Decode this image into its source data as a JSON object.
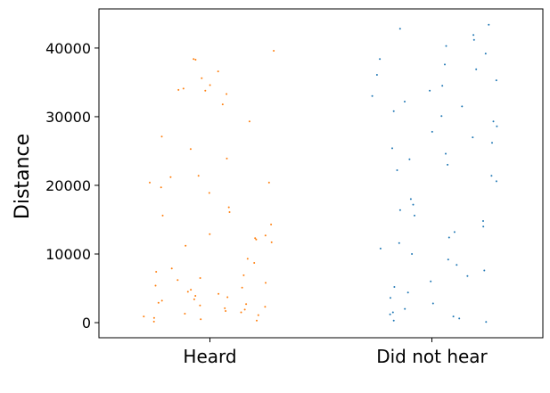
{
  "chart_data": {
    "type": "scatter",
    "subtype": "strip",
    "title": "",
    "xlabel": "",
    "ylabel": "Distance",
    "ylim": [
      -2200,
      45700
    ],
    "yticks": [
      0,
      10000,
      20000,
      30000,
      40000
    ],
    "grid": false,
    "legend": "none",
    "categories": [
      "Heard",
      "Did not hear"
    ],
    "series": [
      {
        "category": "Heard",
        "color": "#ff7f0e",
        "summary": "dense cluster from 0 to about 2500, sparser points up to about 7000, scattered outliers up to about 39600",
        "values": [
          20400,
          34600,
          36600,
          38400,
          31800,
          33300,
          33900,
          39600,
          38300,
          35600,
          34100,
          33800,
          29300,
          27100,
          25300,
          23900,
          21400,
          21200,
          20400,
          19700,
          18900,
          16800,
          16100,
          15600,
          14300,
          12900,
          12700,
          12300,
          12100,
          11700,
          11200,
          9300,
          8700,
          7900,
          7400,
          6900,
          6500,
          6200,
          5800,
          5400,
          5100,
          4800,
          4500,
          4200,
          3900,
          3700,
          3400,
          3200,
          2900,
          2700,
          2500,
          2300,
          2100,
          1900,
          1700,
          1500,
          1300,
          1100,
          900,
          700,
          500,
          300,
          150
        ]
      },
      {
        "category": "Did not hear",
        "color": "#1f77b4",
        "summary": "bimodal: dense band from about 20500 to 43500, a second band from about 2000 to 18000, and a dense cluster from 0 to about 1500",
        "values": [
          43400,
          42800,
          41900,
          41200,
          40300,
          39200,
          38400,
          37600,
          36900,
          36100,
          35300,
          34500,
          33800,
          33000,
          32200,
          31500,
          30800,
          30100,
          29300,
          28600,
          27800,
          27000,
          26200,
          25400,
          24600,
          23800,
          23000,
          22200,
          21400,
          20600,
          18000,
          17200,
          16400,
          15600,
          14800,
          14000,
          13200,
          12400,
          11600,
          10800,
          10000,
          9200,
          8400,
          7600,
          6800,
          6000,
          5200,
          4400,
          3600,
          2800,
          2000,
          1500,
          1200,
          900,
          600,
          300,
          100
        ]
      }
    ]
  }
}
